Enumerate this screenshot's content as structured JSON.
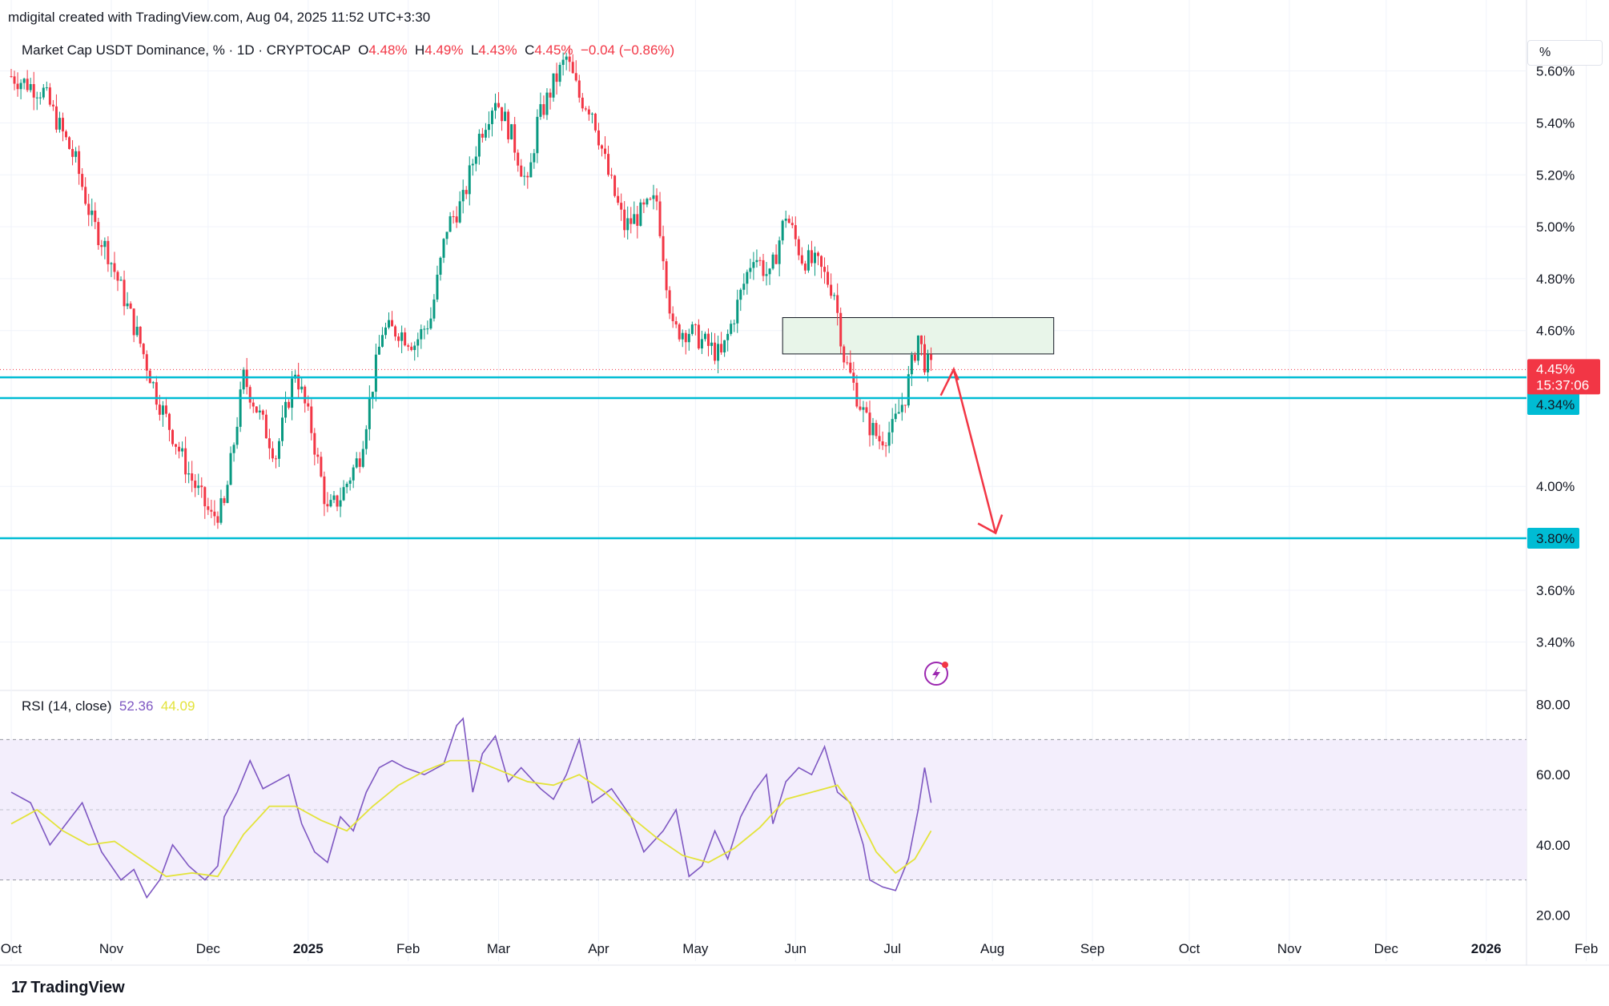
{
  "header": "mdigital created with TradingView.com, Aug 04, 2025 11:52 UTC+3:30",
  "legend": {
    "symbol": "Market Cap USDT Dominance, % · 1D · CRYPTOCAP",
    "o_label": "O",
    "o_value": "4.48%",
    "h_label": "H",
    "h_value": "4.49%",
    "l_label": "L",
    "l_value": "4.43%",
    "c_label": "C",
    "c_value": "4.45%",
    "change": "−0.04 (−0.86%)"
  },
  "rsi_legend": {
    "label": "RSI (14, close)",
    "value": "52.36",
    "ma_value": "44.09"
  },
  "unit_label": "%",
  "footer": {
    "logo_mark": "17",
    "logo_text": "TradingView"
  },
  "colors": {
    "up": "#089981",
    "down": "#f23645",
    "hline": "#00bcd4",
    "zone_fill": "#e8f5e9",
    "rsi_line": "#7e57c2",
    "rsi_ma": "#e3e33a",
    "rsi_band": "#f3eefc",
    "arrow": "#f23645"
  },
  "chart_data": [
    {
      "type": "candlestick",
      "title": "Market Cap USDT Dominance, % · 1D · CRYPTOCAP",
      "ylabel": "%",
      "ylim": [
        3.22,
        5.75
      ],
      "y_ticks": [
        "5.60%",
        "5.40%",
        "5.20%",
        "5.00%",
        "4.80%",
        "4.60%",
        "4.00%",
        "3.60%",
        "3.40%"
      ],
      "x_ticks": [
        "Oct",
        "Nov",
        "Dec",
        "2025",
        "Feb",
        "Mar",
        "Apr",
        "May",
        "Jun",
        "Jul",
        "Aug",
        "Sep",
        "Oct",
        "Nov",
        "Dec",
        "2026",
        "Feb"
      ],
      "price_path_close": [
        [
          0,
          5.58
        ],
        [
          10,
          5.52
        ],
        [
          20,
          5.25
        ],
        [
          25,
          5.02
        ],
        [
          30,
          4.9
        ],
        [
          40,
          4.55
        ],
        [
          45,
          4.35
        ],
        [
          50,
          4.2
        ],
        [
          55,
          4.05
        ],
        [
          62,
          3.88
        ],
        [
          66,
          3.92
        ],
        [
          72,
          4.42
        ],
        [
          76,
          4.3
        ],
        [
          82,
          4.12
        ],
        [
          88,
          4.45
        ],
        [
          93,
          4.22
        ],
        [
          98,
          3.9
        ],
        [
          102,
          3.96
        ],
        [
          108,
          4.12
        ],
        [
          115,
          4.6
        ],
        [
          120,
          4.6
        ],
        [
          125,
          4.55
        ],
        [
          130,
          4.65
        ],
        [
          135,
          5.0
        ],
        [
          140,
          5.1
        ],
        [
          145,
          5.35
        ],
        [
          150,
          5.5
        ],
        [
          155,
          5.35
        ],
        [
          160,
          5.15
        ],
        [
          163,
          5.4
        ],
        [
          168,
          5.55
        ],
        [
          172,
          5.65
        ],
        [
          176,
          5.5
        ],
        [
          180,
          5.45
        ],
        [
          185,
          5.2
        ],
        [
          190,
          5.0
        ],
        [
          195,
          5.05
        ],
        [
          200,
          5.1
        ],
        [
          205,
          4.6
        ],
        [
          210,
          4.6
        ],
        [
          215,
          4.55
        ],
        [
          220,
          4.5
        ],
        [
          225,
          4.7
        ],
        [
          230,
          4.9
        ],
        [
          235,
          4.8
        ],
        [
          240,
          5.05
        ],
        [
          245,
          4.88
        ],
        [
          250,
          4.85
        ],
        [
          255,
          4.75
        ],
        [
          258,
          4.5
        ],
        [
          262,
          4.35
        ],
        [
          265,
          4.25
        ],
        [
          269,
          4.18
        ],
        [
          273,
          4.22
        ],
        [
          277,
          4.35
        ],
        [
          281,
          4.58
        ],
        [
          283,
          4.48
        ],
        [
          285,
          4.45
        ]
      ],
      "current_price": "4.45%",
      "countdown": "15:37:06",
      "horizontal_levels": [
        "4.42%",
        "4.34%",
        "3.80%"
      ],
      "zone": {
        "x_range": [
          239,
          323
        ],
        "y_range": [
          4.51,
          4.65
        ]
      },
      "projection_arrow": {
        "from": [
          288,
          4.35
        ],
        "via": [
          292,
          4.45
        ],
        "to": [
          305,
          3.82
        ]
      }
    },
    {
      "type": "line",
      "title": "RSI (14, close)",
      "ylim": [
        16,
        84
      ],
      "y_ticks": [
        "80.00",
        "60.00",
        "40.00",
        "20.00"
      ],
      "band": [
        30,
        70
      ],
      "midline": 50,
      "series": [
        {
          "name": "RSI",
          "values": [
            [
              0,
              55
            ],
            [
              6,
              52
            ],
            [
              12,
              40
            ],
            [
              17,
              46
            ],
            [
              22,
              52
            ],
            [
              28,
              38
            ],
            [
              34,
              30
            ],
            [
              38,
              33
            ],
            [
              42,
              25
            ],
            [
              46,
              30
            ],
            [
              50,
              40
            ],
            [
              55,
              34
            ],
            [
              60,
              30
            ],
            [
              64,
              34
            ],
            [
              66,
              48
            ],
            [
              70,
              55
            ],
            [
              74,
              64
            ],
            [
              78,
              56
            ],
            [
              82,
              58
            ],
            [
              86,
              60
            ],
            [
              90,
              46
            ],
            [
              94,
              38
            ],
            [
              98,
              35
            ],
            [
              102,
              48
            ],
            [
              106,
              44
            ],
            [
              110,
              55
            ],
            [
              114,
              62
            ],
            [
              118,
              64
            ],
            [
              122,
              62
            ],
            [
              128,
              60
            ],
            [
              134,
              63
            ],
            [
              138,
              74
            ],
            [
              140,
              76
            ],
            [
              143,
              55
            ],
            [
              146,
              66
            ],
            [
              150,
              71
            ],
            [
              154,
              58
            ],
            [
              158,
              62
            ],
            [
              164,
              56
            ],
            [
              168,
              53
            ],
            [
              172,
              60
            ],
            [
              176,
              70
            ],
            [
              180,
              52
            ],
            [
              186,
              56
            ],
            [
              192,
              48
            ],
            [
              196,
              38
            ],
            [
              202,
              44
            ],
            [
              206,
              50
            ],
            [
              210,
              31
            ],
            [
              214,
              34
            ],
            [
              218,
              44
            ],
            [
              222,
              36
            ],
            [
              226,
              48
            ],
            [
              230,
              55
            ],
            [
              234,
              60
            ],
            [
              236,
              46
            ],
            [
              240,
              58
            ],
            [
              244,
              62
            ],
            [
              248,
              60
            ],
            [
              252,
              68
            ],
            [
              256,
              55
            ],
            [
              260,
              52
            ],
            [
              264,
              40
            ],
            [
              266,
              30
            ],
            [
              270,
              28
            ],
            [
              274,
              27
            ],
            [
              278,
              36
            ],
            [
              281,
              50
            ],
            [
              283,
              62
            ],
            [
              285,
              52
            ]
          ]
        },
        {
          "name": "RSI-based MA",
          "values": [
            [
              0,
              46
            ],
            [
              8,
              50
            ],
            [
              16,
              44
            ],
            [
              24,
              40
            ],
            [
              32,
              41
            ],
            [
              40,
              36
            ],
            [
              48,
              31
            ],
            [
              56,
              32
            ],
            [
              64,
              31
            ],
            [
              72,
              43
            ],
            [
              80,
              51
            ],
            [
              88,
              51
            ],
            [
              96,
              47
            ],
            [
              104,
              44
            ],
            [
              112,
              51
            ],
            [
              120,
              57
            ],
            [
              128,
              61
            ],
            [
              136,
              64
            ],
            [
              144,
              64
            ],
            [
              152,
              61
            ],
            [
              160,
              58
            ],
            [
              168,
              57
            ],
            [
              176,
              60
            ],
            [
              184,
              55
            ],
            [
              192,
              48
            ],
            [
              200,
              42
            ],
            [
              208,
              37
            ],
            [
              216,
              35
            ],
            [
              224,
              39
            ],
            [
              232,
              45
            ],
            [
              240,
              53
            ],
            [
              248,
              55
            ],
            [
              256,
              57
            ],
            [
              262,
              49
            ],
            [
              268,
              38
            ],
            [
              274,
              32
            ],
            [
              280,
              36
            ],
            [
              285,
              44
            ]
          ]
        }
      ]
    }
  ]
}
